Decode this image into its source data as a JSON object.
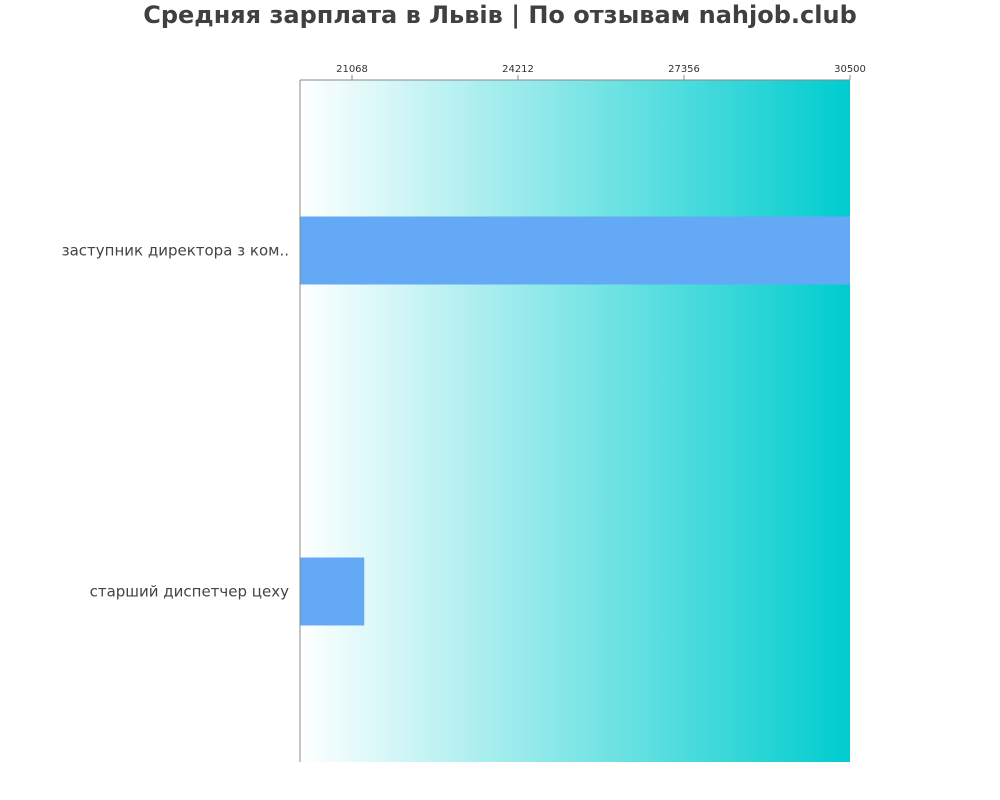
{
  "chart_data": {
    "type": "bar",
    "orientation": "horizontal",
    "title": "Средняя зарплата в Львів | По отзывам nahjob.club",
    "xlabel": "",
    "ylabel": "",
    "categories": [
      "заступник директора з ком..",
      "старший диспетчер цеху"
    ],
    "values": [
      30500,
      21300
    ],
    "x_ticks": [
      "21068",
      "24212",
      "27356",
      "30500"
    ],
    "x_tick_values": [
      21068,
      24212,
      27356,
      30500
    ],
    "xlim": [
      20083,
      30500
    ],
    "x_axis_position": "top",
    "grid": false,
    "legend": "none",
    "colors": {
      "bar": "#64a9f5",
      "background_gradient_start": "#ffffff",
      "background_gradient_end": "#00ccce",
      "axis": "#888888",
      "text": "#444444"
    }
  }
}
